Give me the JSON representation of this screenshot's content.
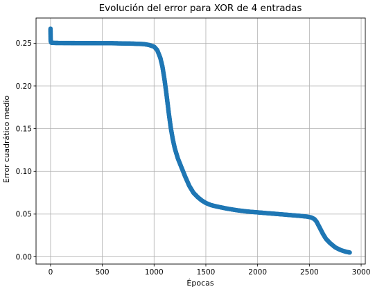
{
  "chart_data": {
    "type": "scatter",
    "title": "Evolución del error para XOR de 4 entradas",
    "xlabel": "Épocas",
    "ylabel": "Error cuadrático medio",
    "xlim": [
      -140,
      3040
    ],
    "ylim": [
      -0.0085,
      0.2795
    ],
    "xticks": [
      0,
      500,
      1000,
      1500,
      2000,
      2500,
      3000
    ],
    "yticks": [
      0.0,
      0.05,
      0.1,
      0.15,
      0.2,
      0.25
    ],
    "xtick_labels": [
      "0",
      "500",
      "1000",
      "1500",
      "2000",
      "2500",
      "3000"
    ],
    "ytick_labels": [
      "0.00",
      "0.05",
      "0.10",
      "0.15",
      "0.20",
      "0.25"
    ],
    "grid": true,
    "marker_color": "#1f77b4",
    "series": [
      {
        "points": [
          [
            0,
            0.267
          ],
          [
            1,
            0.254
          ],
          [
            2,
            0.252
          ],
          [
            5,
            0.251
          ],
          [
            10,
            0.2505
          ],
          [
            50,
            0.2503
          ],
          [
            200,
            0.2502
          ],
          [
            400,
            0.2501
          ],
          [
            600,
            0.25
          ],
          [
            800,
            0.2495
          ],
          [
            900,
            0.249
          ],
          [
            950,
            0.248
          ],
          [
            1000,
            0.246
          ],
          [
            1030,
            0.242
          ],
          [
            1060,
            0.233
          ],
          [
            1080,
            0.223
          ],
          [
            1100,
            0.208
          ],
          [
            1120,
            0.19
          ],
          [
            1140,
            0.17
          ],
          [
            1160,
            0.152
          ],
          [
            1180,
            0.138
          ],
          [
            1200,
            0.127
          ],
          [
            1230,
            0.115
          ],
          [
            1260,
            0.106
          ],
          [
            1300,
            0.094
          ],
          [
            1340,
            0.083
          ],
          [
            1380,
            0.075
          ],
          [
            1420,
            0.07
          ],
          [
            1460,
            0.066
          ],
          [
            1500,
            0.063
          ],
          [
            1550,
            0.0605
          ],
          [
            1600,
            0.059
          ],
          [
            1700,
            0.0565
          ],
          [
            1800,
            0.0545
          ],
          [
            1900,
            0.053
          ],
          [
            2000,
            0.052
          ],
          [
            2100,
            0.051
          ],
          [
            2200,
            0.05
          ],
          [
            2300,
            0.049
          ],
          [
            2400,
            0.048
          ],
          [
            2480,
            0.047
          ],
          [
            2520,
            0.046
          ],
          [
            2550,
            0.044
          ],
          [
            2570,
            0.041
          ],
          [
            2600,
            0.034
          ],
          [
            2630,
            0.027
          ],
          [
            2660,
            0.021
          ],
          [
            2700,
            0.016
          ],
          [
            2750,
            0.011
          ],
          [
            2800,
            0.008
          ],
          [
            2850,
            0.006
          ],
          [
            2890,
            0.005
          ]
        ]
      }
    ]
  }
}
